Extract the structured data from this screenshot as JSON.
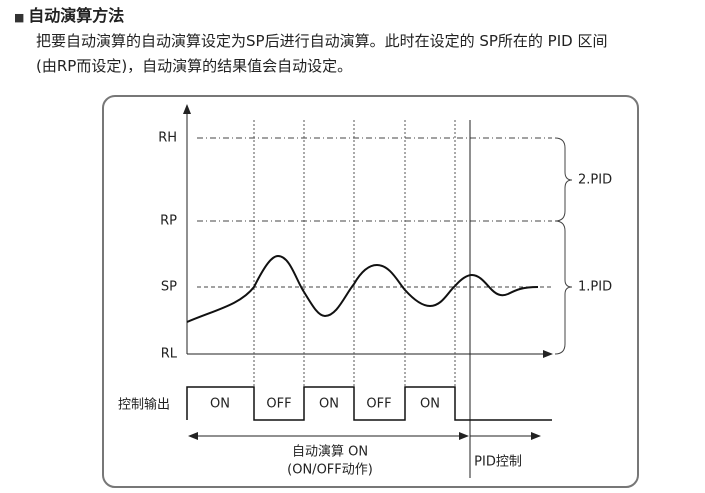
{
  "header": {
    "title": "自动演算方法"
  },
  "body": {
    "lines": [
      "把要自动演算的自动演算设定为SP后进行自动演算。此时在设定的 SP所在的 PID 区间",
      "(由RP而设定)，自动演算的结果值会自动设定。"
    ]
  },
  "diagram": {
    "levels": [
      "RH",
      "RP",
      "SP",
      "RL"
    ],
    "brackets": [
      "2.PID",
      "1.PID"
    ],
    "output_label": "控制输出",
    "states": [
      "ON",
      "OFF",
      "ON",
      "OFF",
      "ON"
    ],
    "phase_auto": [
      "自动演算 ON",
      "(ON/OFF动作)"
    ],
    "phase_pid": "PID控制"
  }
}
